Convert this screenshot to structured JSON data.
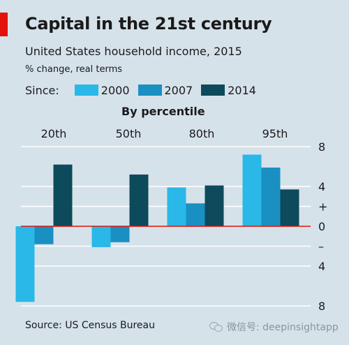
{
  "header": {
    "title": "Capital in the 21st century",
    "subtitle": "United States household income, 2015",
    "unit": "% change, real terms"
  },
  "legend": {
    "title": "Since:",
    "items": [
      {
        "label": "2000",
        "color": "#29b8e8"
      },
      {
        "label": "2007",
        "color": "#1a8fc2"
      },
      {
        "label": "2014",
        "color": "#0d4a5c"
      }
    ]
  },
  "footer": {
    "source": "Source: US Census Bureau",
    "watermark": "微信号: deepinsightapp"
  },
  "chart_data": {
    "type": "bar",
    "group_title": "By percentile",
    "categories": [
      "20th",
      "50th",
      "80th",
      "95th"
    ],
    "series": [
      {
        "name": "2000",
        "color": "#29b8e8",
        "values": [
          -7.6,
          -2.1,
          3.9,
          7.2
        ]
      },
      {
        "name": "2007",
        "color": "#1a8fc2",
        "values": [
          -1.8,
          -1.6,
          2.3,
          5.9
        ]
      },
      {
        "name": "2014",
        "color": "#0d4a5c",
        "values": [
          6.2,
          5.2,
          4.1,
          3.7
        ]
      }
    ],
    "ylim": [
      -8,
      8
    ],
    "yticks": [
      {
        "value": 8,
        "label": "8"
      },
      {
        "value": 4,
        "label": "4"
      },
      {
        "value": 2,
        "label": "+"
      },
      {
        "value": 0,
        "label": "0"
      },
      {
        "value": -2,
        "label": "–"
      },
      {
        "value": -4,
        "label": "4"
      },
      {
        "value": -8,
        "label": "8"
      }
    ],
    "zero_line_color": "#e3120b",
    "grid": true
  }
}
